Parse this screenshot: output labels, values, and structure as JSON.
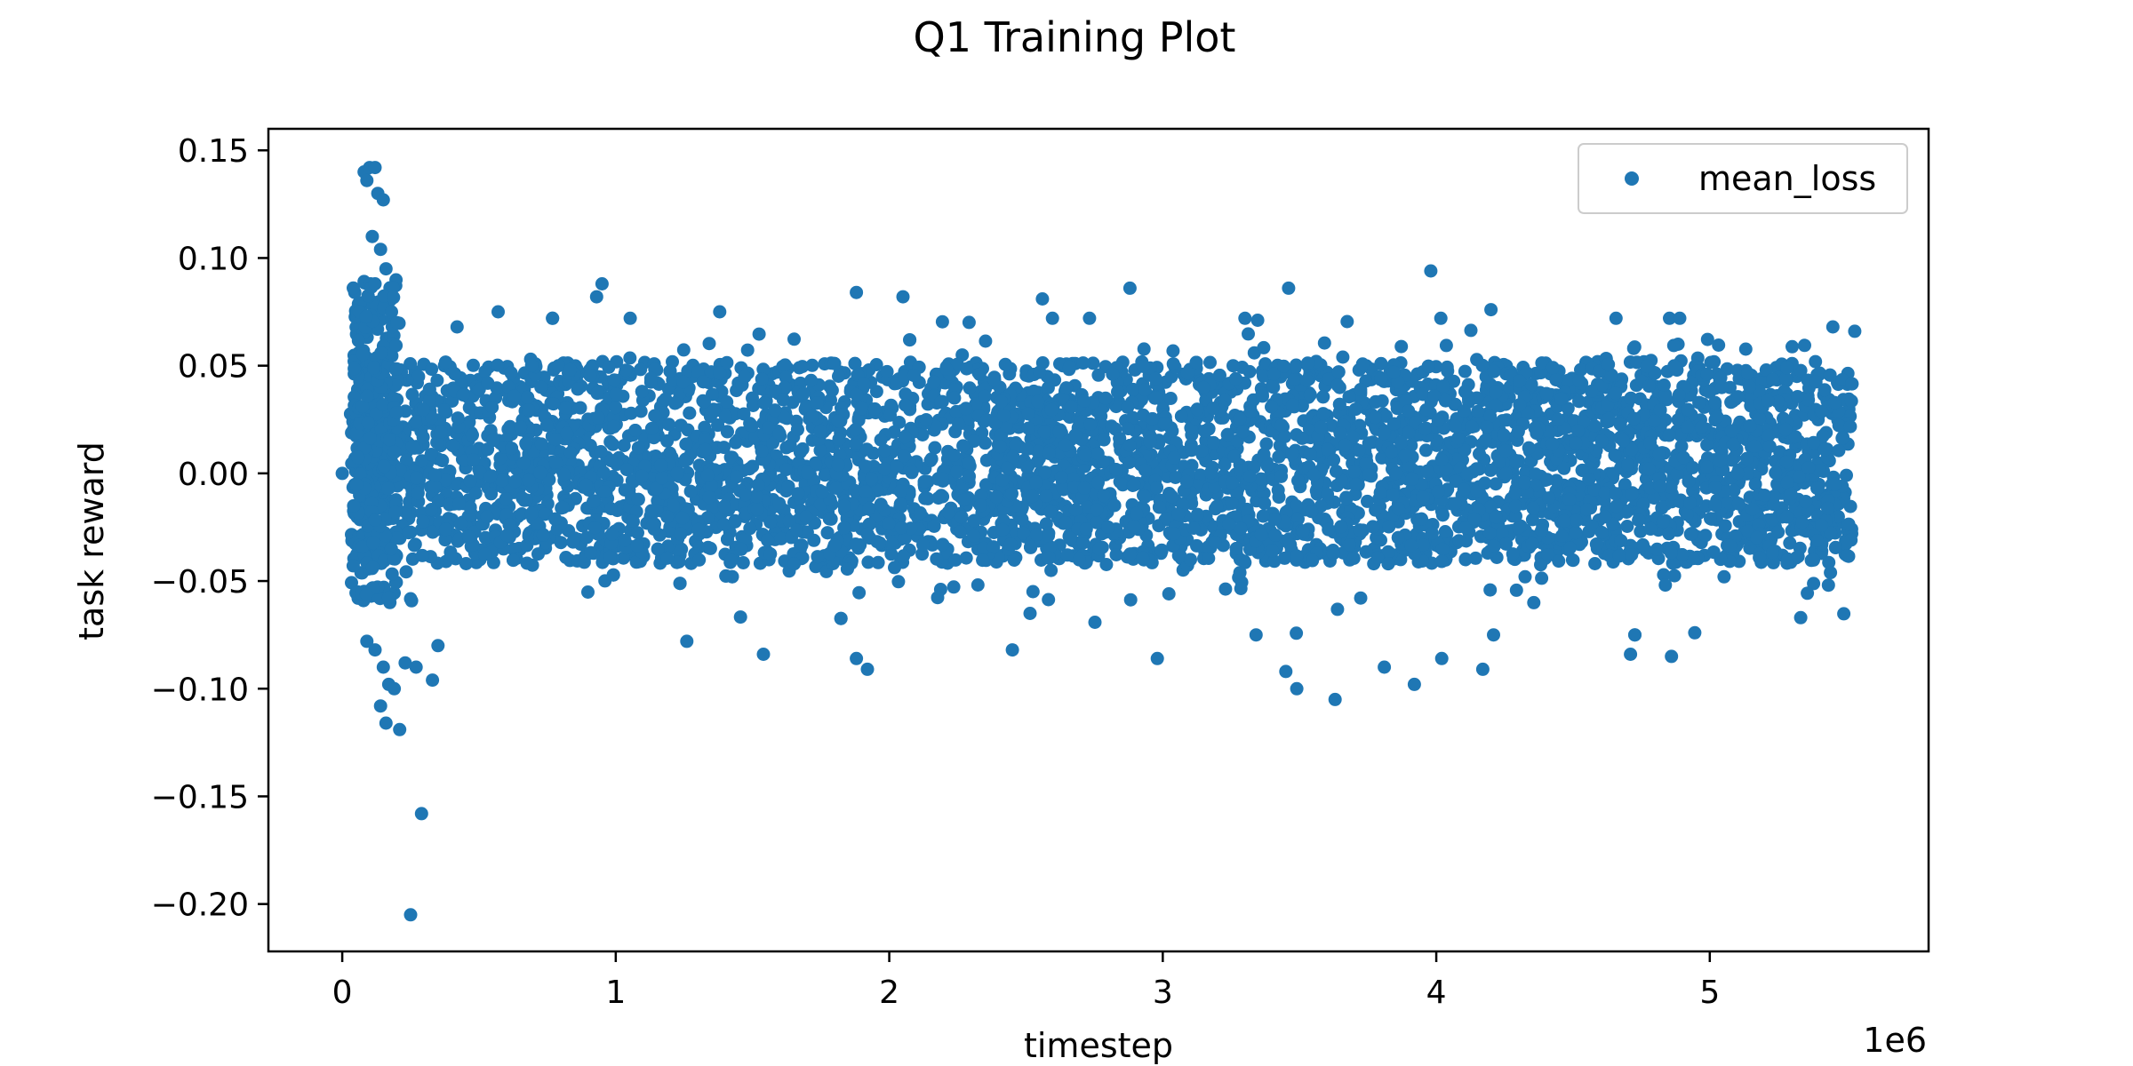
{
  "chart_data": {
    "type": "scatter",
    "title": "Q1 Training Plot",
    "xlabel": "timestep",
    "ylabel": "task reward",
    "x_offset_label": "1e6",
    "xlim": [
      -0.27,
      5.8
    ],
    "ylim": [
      -0.222,
      0.16
    ],
    "x_ticks": [
      0,
      1,
      2,
      3,
      4,
      5
    ],
    "x_tick_labels": [
      "0",
      "1",
      "2",
      "3",
      "4",
      "5"
    ],
    "y_ticks": [
      0.15,
      0.1,
      0.05,
      0.0,
      -0.05,
      -0.1,
      -0.15,
      -0.2
    ],
    "y_tick_labels": [
      "0.15",
      "0.10",
      "0.05",
      "0.00",
      "−0.05",
      "−0.10",
      "−0.15",
      "−0.20"
    ],
    "grid": false,
    "legend_position": "top-right",
    "series": [
      {
        "name": "mean_loss",
        "color": "#1f77b4",
        "x_units": "millions of timesteps",
        "x_range": [
          0.0,
          5.52
        ],
        "dense_band": [
          -0.042,
          0.052
        ],
        "outliers": [
          {
            "x": 0.0,
            "y": 0.0
          },
          {
            "x": 0.08,
            "y": 0.14
          },
          {
            "x": 0.1,
            "y": 0.142
          },
          {
            "x": 0.12,
            "y": 0.142
          },
          {
            "x": 0.09,
            "y": 0.136
          },
          {
            "x": 0.13,
            "y": 0.13
          },
          {
            "x": 0.15,
            "y": 0.127
          },
          {
            "x": 0.11,
            "y": 0.11
          },
          {
            "x": 0.14,
            "y": 0.104
          },
          {
            "x": 0.16,
            "y": 0.095
          },
          {
            "x": 0.12,
            "y": 0.088
          },
          {
            "x": 0.18,
            "y": 0.075
          },
          {
            "x": 0.2,
            "y": 0.07
          },
          {
            "x": 0.09,
            "y": -0.078
          },
          {
            "x": 0.12,
            "y": -0.082
          },
          {
            "x": 0.15,
            "y": -0.09
          },
          {
            "x": 0.17,
            "y": -0.098
          },
          {
            "x": 0.14,
            "y": -0.108
          },
          {
            "x": 0.16,
            "y": -0.116
          },
          {
            "x": 0.21,
            "y": -0.119
          },
          {
            "x": 0.19,
            "y": -0.1
          },
          {
            "x": 0.23,
            "y": -0.088
          },
          {
            "x": 0.27,
            "y": -0.09
          },
          {
            "x": 0.33,
            "y": -0.096
          },
          {
            "x": 0.35,
            "y": -0.08
          },
          {
            "x": 0.29,
            "y": -0.158
          },
          {
            "x": 0.25,
            "y": -0.205
          },
          {
            "x": 0.95,
            "y": 0.088
          },
          {
            "x": 0.93,
            "y": 0.082
          },
          {
            "x": 1.88,
            "y": 0.084
          },
          {
            "x": 2.05,
            "y": 0.082
          },
          {
            "x": 2.56,
            "y": 0.081
          },
          {
            "x": 2.88,
            "y": 0.086
          },
          {
            "x": 3.46,
            "y": 0.086
          },
          {
            "x": 3.98,
            "y": 0.094
          },
          {
            "x": 4.2,
            "y": 0.076
          },
          {
            "x": 5.45,
            "y": 0.068
          },
          {
            "x": 5.53,
            "y": 0.066
          },
          {
            "x": 1.38,
            "y": 0.075
          },
          {
            "x": 0.42,
            "y": 0.068
          },
          {
            "x": 0.57,
            "y": 0.075
          },
          {
            "x": 3.92,
            "y": -0.098
          },
          {
            "x": 3.63,
            "y": -0.105
          },
          {
            "x": 3.49,
            "y": -0.1
          },
          {
            "x": 3.45,
            "y": -0.092
          },
          {
            "x": 1.92,
            "y": -0.091
          },
          {
            "x": 1.88,
            "y": -0.086
          },
          {
            "x": 4.17,
            "y": -0.091
          },
          {
            "x": 4.86,
            "y": -0.085
          },
          {
            "x": 4.71,
            "y": -0.084
          },
          {
            "x": 2.98,
            "y": -0.086
          },
          {
            "x": 1.54,
            "y": -0.084
          },
          {
            "x": 1.26,
            "y": -0.078
          },
          {
            "x": 3.81,
            "y": -0.09
          },
          {
            "x": 4.02,
            "y": -0.086
          },
          {
            "x": 2.45,
            "y": -0.082
          }
        ]
      }
    ]
  }
}
